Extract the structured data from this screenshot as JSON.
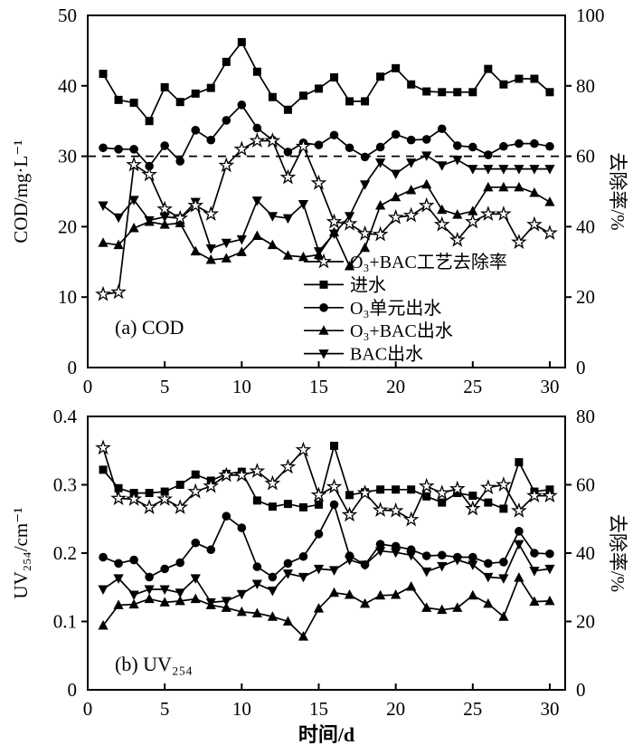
{
  "figure": {
    "background": "#ffffff",
    "foreground": "#000000"
  },
  "x_axis_title": "时间/d",
  "legend": {
    "location": "inside panel (a), lower middle",
    "items": [
      {
        "marker": "star-open",
        "label": "O₃+BAC工艺去除率"
      },
      {
        "marker": "square",
        "label": "进水"
      },
      {
        "marker": "circle",
        "label": "O₃单元出水"
      },
      {
        "marker": "triangle-up",
        "label": "O₃+BAC出水"
      },
      {
        "marker": "triangle-down",
        "label": "BAC出水"
      }
    ]
  },
  "chart_data": [
    {
      "type": "line",
      "panel_label": "(a) COD",
      "ylabel_left": "COD/mg·L⁻¹",
      "ylabel_right": "去除率/%",
      "xlim": [
        0,
        31
      ],
      "ylim_left": [
        0,
        50
      ],
      "ylim_right": [
        0,
        100
      ],
      "xticks": [
        0,
        5,
        10,
        15,
        20,
        25,
        30
      ],
      "yticks_left": [
        0,
        10,
        20,
        30,
        40,
        50
      ],
      "yticks_right": [
        0,
        20,
        40,
        60,
        80,
        100
      ],
      "grid": false,
      "reference_line": {
        "axis": "left",
        "value": 30,
        "style": "dashed"
      },
      "x": [
        1,
        2,
        3,
        4,
        5,
        6,
        7,
        8,
        9,
        10,
        11,
        12,
        13,
        14,
        15,
        16,
        17,
        18,
        19,
        20,
        21,
        22,
        23,
        24,
        25,
        26,
        27,
        28,
        29,
        30
      ],
      "series": [
        {
          "id": "influent",
          "name": "进水",
          "marker": "square",
          "axis": "left",
          "line": "solid",
          "values": [
            41.7,
            38.0,
            37.6,
            35.0,
            39.8,
            37.7,
            38.9,
            39.7,
            43.4,
            46.2,
            42.0,
            38.4,
            36.6,
            38.6,
            39.6,
            41.2,
            37.8,
            37.8,
            41.3,
            42.5,
            40.2,
            39.2,
            39.1,
            39.1,
            39.1,
            42.4,
            40.2,
            41.0,
            41.0,
            39.1
          ]
        },
        {
          "id": "o3-unit-effluent",
          "name": "O₃单元出水",
          "marker": "circle",
          "axis": "left",
          "line": "solid",
          "values": [
            31.2,
            31.0,
            31.0,
            28.6,
            31.5,
            29.3,
            33.7,
            32.3,
            35.1,
            37.3,
            34.0,
            32.3,
            30.6,
            31.9,
            31.6,
            33.0,
            31.2,
            29.9,
            31.3,
            33.1,
            32.3,
            32.4,
            33.9,
            31.5,
            31.3,
            30.2,
            31.4,
            31.8,
            31.8,
            31.4
          ]
        },
        {
          "id": "o3-bac-effluent",
          "name": "O₃+BAC出水",
          "marker": "triangle-up",
          "axis": "left",
          "line": "solid",
          "values": [
            17.7,
            17.4,
            19.8,
            20.7,
            20.3,
            20.5,
            16.5,
            15.3,
            15.5,
            16.4,
            18.7,
            17.4,
            15.9,
            15.7,
            16.0,
            19.2,
            14.4,
            17.0,
            23.0,
            24.2,
            25.2,
            26.0,
            22.4,
            21.7,
            22.2,
            25.6,
            25.6,
            25.6,
            24.8,
            23.5
          ]
        },
        {
          "id": "bac-effluent",
          "name": "BAC出水",
          "marker": "triangle-down",
          "axis": "left",
          "line": "solid",
          "values": [
            23.0,
            21.3,
            23.8,
            20.9,
            21.4,
            21.2,
            23.5,
            16.9,
            17.7,
            18.2,
            23.7,
            21.5,
            21.2,
            23.2,
            16.5,
            19.0,
            21.5,
            26.0,
            29.1,
            27.5,
            29.1,
            30.1,
            28.7,
            29.5,
            28.2,
            28.2,
            28.2,
            28.2,
            28.2,
            28.2
          ]
        },
        {
          "id": "removal-rate",
          "name": "O₃+BAC工艺去除率",
          "marker": "star-open",
          "axis": "right",
          "line": "solid",
          "values": [
            20.8,
            21.4,
            57.6,
            54.8,
            45.0,
            42.4,
            46.0,
            43.6,
            57.4,
            62.0,
            64.4,
            64.4,
            54.0,
            62.8,
            52.4,
            41.4,
            40.8,
            38.0,
            37.8,
            42.6,
            43.2,
            46.0,
            40.6,
            36.2,
            41.4,
            43.6,
            43.6,
            35.6,
            40.6,
            38.2
          ]
        }
      ]
    },
    {
      "type": "line",
      "panel_label": "(b) UV₂₅₄",
      "ylabel_left": "UV₂₅₄/cm⁻¹",
      "ylabel_right": "去除率/%",
      "xlim": [
        0,
        31
      ],
      "ylim_left": [
        0,
        0.4
      ],
      "ylim_right": [
        0,
        80
      ],
      "xticks": [
        0,
        5,
        10,
        15,
        20,
        25,
        30
      ],
      "yticks_left": [
        0,
        0.1,
        0.2,
        0.3,
        0.4
      ],
      "yticks_right": [
        0,
        20,
        40,
        60,
        80
      ],
      "grid": false,
      "x": [
        1,
        2,
        3,
        4,
        5,
        6,
        7,
        8,
        9,
        10,
        11,
        12,
        13,
        14,
        15,
        16,
        17,
        18,
        19,
        20,
        21,
        22,
        23,
        24,
        25,
        26,
        27,
        28,
        29,
        30
      ],
      "series": [
        {
          "id": "influent",
          "name": "进水",
          "marker": "square",
          "axis": "left",
          "line": "solid",
          "values": [
            0.322,
            0.295,
            0.288,
            0.288,
            0.29,
            0.3,
            0.315,
            0.306,
            0.316,
            0.319,
            0.277,
            0.268,
            0.272,
            0.267,
            0.271,
            0.357,
            0.285,
            0.289,
            0.293,
            0.293,
            0.293,
            0.283,
            0.274,
            0.288,
            0.284,
            0.274,
            0.265,
            0.333,
            0.29,
            0.293
          ]
        },
        {
          "id": "o3-unit-effluent",
          "name": "O₃单元出水",
          "marker": "circle",
          "axis": "left",
          "line": "solid",
          "values": [
            0.194,
            0.185,
            0.19,
            0.165,
            0.177,
            0.186,
            0.215,
            0.205,
            0.254,
            0.237,
            0.18,
            0.165,
            0.185,
            0.195,
            0.228,
            0.271,
            0.196,
            0.183,
            0.213,
            0.21,
            0.205,
            0.196,
            0.197,
            0.194,
            0.194,
            0.185,
            0.187,
            0.232,
            0.2,
            0.199
          ]
        },
        {
          "id": "o3-bac-effluent",
          "name": "O₃+BAC出水",
          "marker": "triangle-up",
          "axis": "left",
          "line": "solid",
          "values": [
            0.094,
            0.124,
            0.125,
            0.133,
            0.128,
            0.13,
            0.133,
            0.124,
            0.12,
            0.114,
            0.112,
            0.107,
            0.1,
            0.078,
            0.119,
            0.142,
            0.139,
            0.126,
            0.138,
            0.139,
            0.151,
            0.12,
            0.117,
            0.12,
            0.138,
            0.126,
            0.107,
            0.164,
            0.129,
            0.13
          ]
        },
        {
          "id": "bac-effluent",
          "name": "BAC出水",
          "marker": "triangle-down",
          "axis": "left",
          "line": "solid",
          "values": [
            0.147,
            0.163,
            0.139,
            0.147,
            0.147,
            0.142,
            0.163,
            0.128,
            0.13,
            0.14,
            0.155,
            0.145,
            0.17,
            0.165,
            0.177,
            0.175,
            0.19,
            0.183,
            0.203,
            0.201,
            0.197,
            0.173,
            0.181,
            0.19,
            0.183,
            0.165,
            0.163,
            0.213,
            0.174,
            0.177
          ]
        },
        {
          "id": "removal-rate",
          "name": "O₃+BAC工艺去除率",
          "marker": "star-open",
          "axis": "right",
          "line": "solid",
          "values": [
            70.8,
            56.0,
            55.8,
            53.4,
            55.8,
            53.4,
            58.0,
            59.6,
            62.8,
            62.8,
            64.0,
            60.4,
            65.2,
            70.2,
            57.0,
            59.4,
            51.2,
            57.6,
            52.6,
            52.4,
            49.8,
            59.6,
            57.6,
            58.8,
            53.0,
            59.2,
            60.0,
            52.4,
            56.8,
            56.8
          ]
        }
      ]
    }
  ]
}
